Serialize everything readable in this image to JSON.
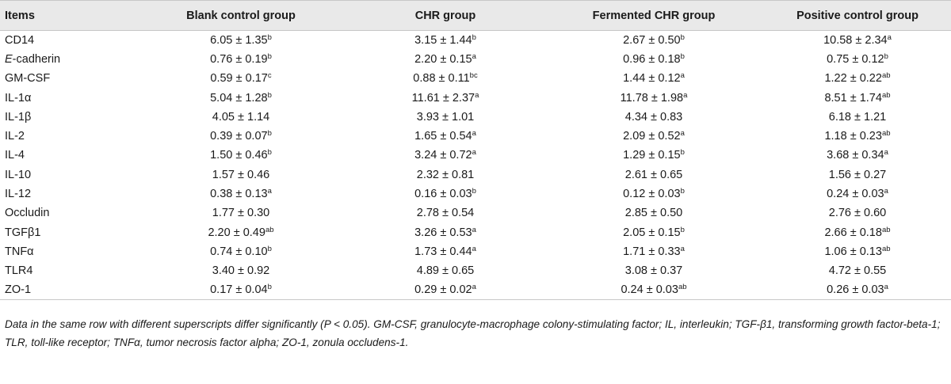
{
  "table": {
    "headers": [
      "Items",
      "Blank control group",
      "CHR group",
      "Fermented CHR group",
      "Positive control group"
    ],
    "rows": [
      {
        "item_prefix": "",
        "item_italic": "",
        "item_suffix": "CD14",
        "cells": [
          {
            "v": "6.05 ± 1.35",
            "s": "b"
          },
          {
            "v": "3.15 ± 1.44",
            "s": "b"
          },
          {
            "v": "2.67 ± 0.50",
            "s": "b"
          },
          {
            "v": "10.58 ± 2.34",
            "s": "a"
          }
        ]
      },
      {
        "item_prefix": "",
        "item_italic": "E",
        "item_suffix": "-cadherin",
        "cells": [
          {
            "v": "0.76 ± 0.19",
            "s": "b"
          },
          {
            "v": "2.20 ± 0.15",
            "s": "a"
          },
          {
            "v": "0.96 ± 0.18",
            "s": "b"
          },
          {
            "v": "0.75 ± 0.12",
            "s": "b"
          }
        ]
      },
      {
        "item_prefix": "",
        "item_italic": "",
        "item_suffix": "GM-CSF",
        "cells": [
          {
            "v": "0.59 ± 0.17",
            "s": "c"
          },
          {
            "v": "0.88 ± 0.11",
            "s": "bc"
          },
          {
            "v": "1.44 ± 0.12",
            "s": "a"
          },
          {
            "v": "1.22 ± 0.22",
            "s": "ab"
          }
        ]
      },
      {
        "item_prefix": "",
        "item_italic": "",
        "item_suffix": "IL-1α",
        "cells": [
          {
            "v": "5.04 ± 1.28",
            "s": "b"
          },
          {
            "v": "11.61 ± 2.37",
            "s": "a"
          },
          {
            "v": "11.78 ± 1.98",
            "s": "a"
          },
          {
            "v": "8.51 ± 1.74",
            "s": "ab"
          }
        ]
      },
      {
        "item_prefix": "",
        "item_italic": "",
        "item_suffix": "IL-1β",
        "cells": [
          {
            "v": "4.05 ± 1.14",
            "s": ""
          },
          {
            "v": "3.93 ± 1.01",
            "s": ""
          },
          {
            "v": "4.34 ± 0.83",
            "s": ""
          },
          {
            "v": "6.18 ± 1.21",
            "s": ""
          }
        ]
      },
      {
        "item_prefix": "",
        "item_italic": "",
        "item_suffix": "IL-2",
        "cells": [
          {
            "v": "0.39 ± 0.07",
            "s": "b"
          },
          {
            "v": "1.65 ± 0.54",
            "s": "a"
          },
          {
            "v": "2.09 ± 0.52",
            "s": "a"
          },
          {
            "v": "1.18 ± 0.23",
            "s": "ab"
          }
        ]
      },
      {
        "item_prefix": "",
        "item_italic": "",
        "item_suffix": "IL-4",
        "cells": [
          {
            "v": "1.50 ± 0.46",
            "s": "b"
          },
          {
            "v": "3.24 ± 0.72",
            "s": "a"
          },
          {
            "v": "1.29 ± 0.15",
            "s": "b"
          },
          {
            "v": "3.68 ± 0.34",
            "s": "a"
          }
        ]
      },
      {
        "item_prefix": "",
        "item_italic": "",
        "item_suffix": "IL-10",
        "cells": [
          {
            "v": "1.57 ± 0.46",
            "s": ""
          },
          {
            "v": "2.32 ± 0.81",
            "s": ""
          },
          {
            "v": "2.61 ± 0.65",
            "s": ""
          },
          {
            "v": "1.56 ± 0.27",
            "s": ""
          }
        ]
      },
      {
        "item_prefix": "",
        "item_italic": "",
        "item_suffix": "IL-12",
        "cells": [
          {
            "v": "0.38 ± 0.13",
            "s": "a"
          },
          {
            "v": "0.16 ± 0.03",
            "s": "b"
          },
          {
            "v": "0.12 ± 0.03",
            "s": "b"
          },
          {
            "v": "0.24 ± 0.03",
            "s": "a"
          }
        ]
      },
      {
        "item_prefix": "",
        "item_italic": "",
        "item_suffix": "Occludin",
        "cells": [
          {
            "v": "1.77 ± 0.30",
            "s": ""
          },
          {
            "v": "2.78 ± 0.54",
            "s": ""
          },
          {
            "v": "2.85 ± 0.50",
            "s": ""
          },
          {
            "v": "2.76 ± 0.60",
            "s": ""
          }
        ]
      },
      {
        "item_prefix": "",
        "item_italic": "",
        "item_suffix": "TGFβ1",
        "cells": [
          {
            "v": "2.20 ± 0.49",
            "s": "ab"
          },
          {
            "v": "3.26 ± 0.53",
            "s": "a"
          },
          {
            "v": "2.05 ± 0.15",
            "s": "b"
          },
          {
            "v": "2.66 ± 0.18",
            "s": "ab"
          }
        ]
      },
      {
        "item_prefix": "",
        "item_italic": "",
        "item_suffix": "TNFα",
        "cells": [
          {
            "v": "0.74 ± 0.10",
            "s": "b"
          },
          {
            "v": "1.73 ± 0.44",
            "s": "a"
          },
          {
            "v": "1.71 ± 0.33",
            "s": "a"
          },
          {
            "v": "1.06 ± 0.13",
            "s": "ab"
          }
        ]
      },
      {
        "item_prefix": "",
        "item_italic": "",
        "item_suffix": "TLR4",
        "cells": [
          {
            "v": "3.40 ± 0.92",
            "s": ""
          },
          {
            "v": "4.89 ± 0.65",
            "s": ""
          },
          {
            "v": "3.08 ± 0.37",
            "s": ""
          },
          {
            "v": "4.72 ± 0.55",
            "s": ""
          }
        ]
      },
      {
        "item_prefix": "",
        "item_italic": "",
        "item_suffix": "ZO-1",
        "cells": [
          {
            "v": "0.17 ± 0.04",
            "s": "b"
          },
          {
            "v": "0.29 ± 0.02",
            "s": "a"
          },
          {
            "v": "0.24 ± 0.03",
            "s": "ab"
          },
          {
            "v": "0.26 ± 0.03",
            "s": "a"
          }
        ]
      }
    ]
  },
  "footnote": "Data in the same row with different superscripts differ significantly (P < 0.05). GM-CSF, granulocyte-macrophage colony-stimulating factor; IL, interleukin; TGF-β1, transforming growth factor-beta-1; TLR, toll-like receptor; TNFα, tumor necrosis factor alpha; ZO-1, zonula occludens-1.",
  "colors": {
    "header_bg": "#e9e9e9",
    "rule": "#c7c7c7",
    "text": "#1a1a1a"
  }
}
